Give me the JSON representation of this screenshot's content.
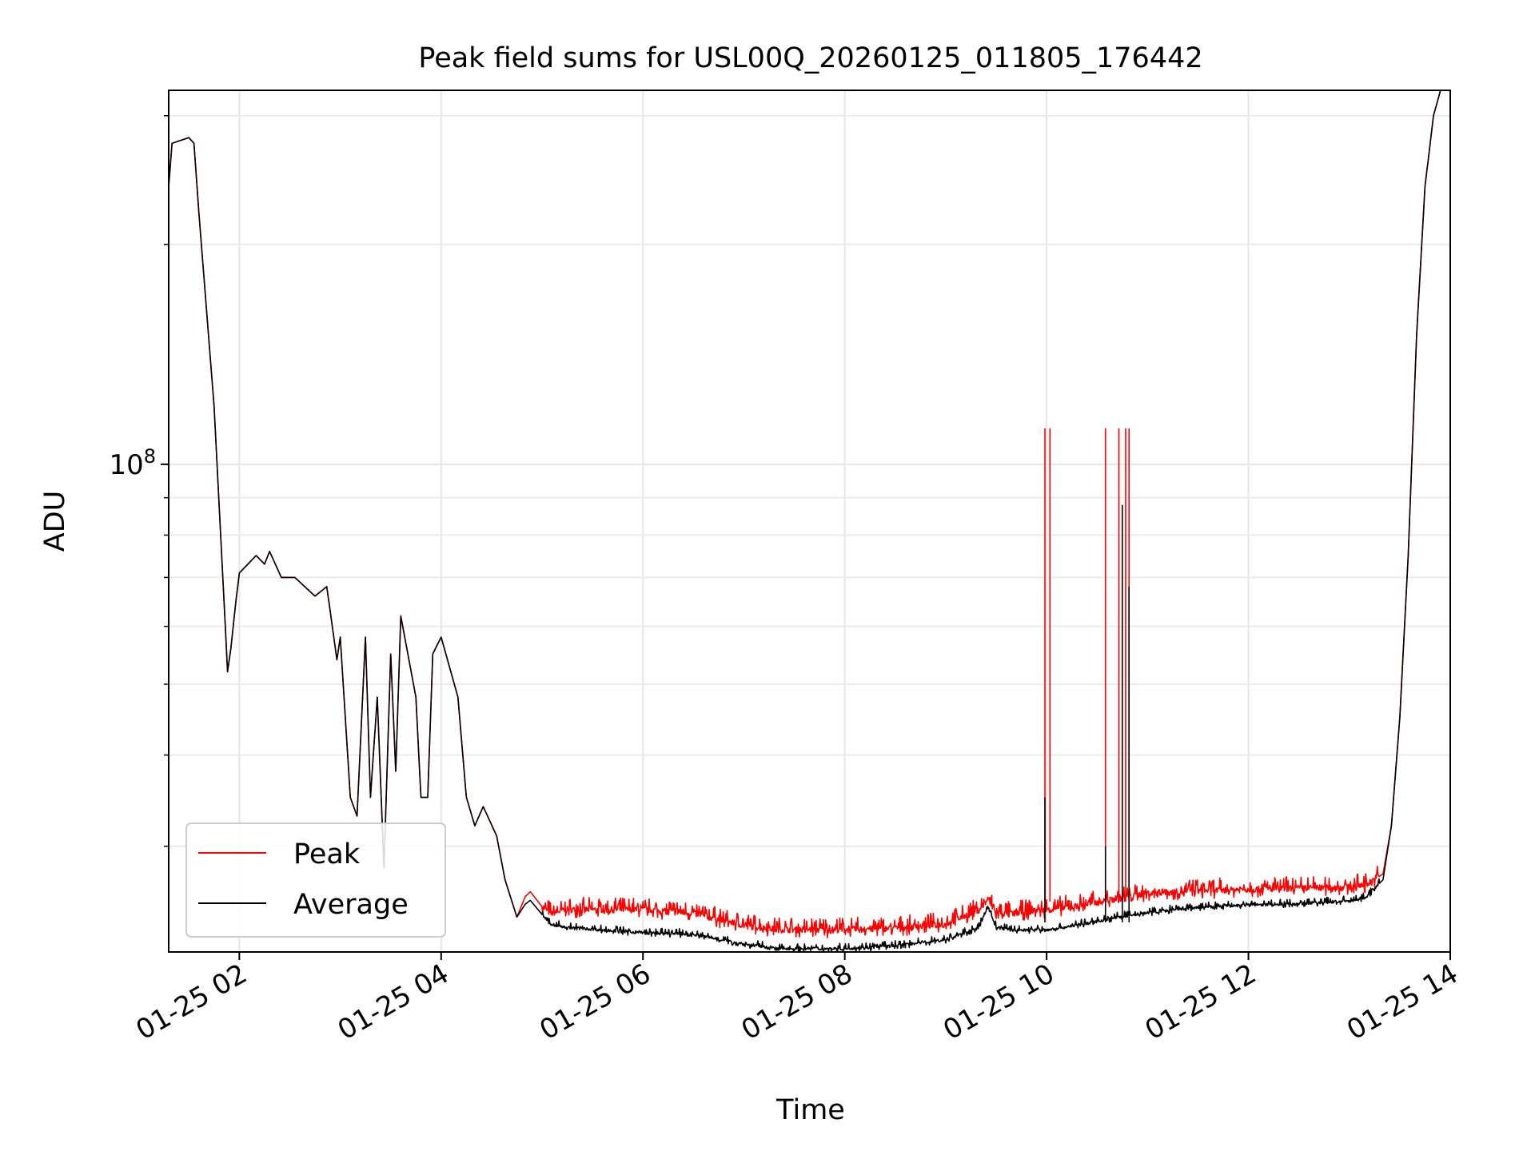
{
  "chart_data": {
    "type": "line",
    "title": "Peak field sums for USL00Q_20260125_011805_176442",
    "xlabel": "Time",
    "ylabel": "ADU",
    "yscale": "log",
    "grid": true,
    "legend_position": "lower-left",
    "x_is_time": true,
    "xlim": [
      "2026-01-25 01:18",
      "2026-01-25 14:00"
    ],
    "ylim": [
      21500000,
      325000000
    ],
    "x_ticks": [
      {
        "value": "2026-01-25 02:00",
        "label": "01-25 02"
      },
      {
        "value": "2026-01-25 04:00",
        "label": "01-25 04"
      },
      {
        "value": "2026-01-25 06:00",
        "label": "01-25 06"
      },
      {
        "value": "2026-01-25 08:00",
        "label": "01-25 08"
      },
      {
        "value": "2026-01-25 10:00",
        "label": "01-25 10"
      },
      {
        "value": "2026-01-25 12:00",
        "label": "01-25 12"
      },
      {
        "value": "2026-01-25 14:00",
        "label": "01-25 14"
      }
    ],
    "y_major_ticks": [
      {
        "value": 100000000,
        "base": "10",
        "exponent": "8"
      }
    ],
    "y_minor_ticks": [
      30000000,
      40000000,
      50000000,
      60000000,
      70000000,
      80000000,
      90000000,
      200000000,
      300000000
    ],
    "series": [
      {
        "name": "Peak",
        "color": "#ff0000",
        "x": [
          "2026-01-25 01:18",
          "2026-01-25 01:20",
          "2026-01-25 01:30",
          "2026-01-25 01:33",
          "2026-01-25 01:36",
          "2026-01-25 01:45",
          "2026-01-25 01:52",
          "2026-01-25 01:53",
          "2026-01-25 01:55",
          "2026-01-25 01:58",
          "2026-01-25 02:00",
          "2026-01-25 02:10",
          "2026-01-25 02:15",
          "2026-01-25 02:18",
          "2026-01-25 02:25",
          "2026-01-25 02:33",
          "2026-01-25 02:45",
          "2026-01-25 02:52",
          "2026-01-25 02:58",
          "2026-01-25 03:00",
          "2026-01-25 03:06",
          "2026-01-25 03:10",
          "2026-01-25 03:15",
          "2026-01-25 03:18",
          "2026-01-25 03:22",
          "2026-01-25 03:26",
          "2026-01-25 03:30",
          "2026-01-25 03:33",
          "2026-01-25 03:36",
          "2026-01-25 03:45",
          "2026-01-25 03:48",
          "2026-01-25 03:52",
          "2026-01-25 03:55",
          "2026-01-25 04:00",
          "2026-01-25 04:10",
          "2026-01-25 04:15",
          "2026-01-25 04:20",
          "2026-01-25 04:25",
          "2026-01-25 04:33",
          "2026-01-25 04:38",
          "2026-01-25 04:45",
          "2026-01-25 04:50",
          "2026-01-25 04:53",
          "2026-01-25 05:00",
          "2026-01-25 05:05",
          "2026-01-25 05:15",
          "2026-01-25 06:00",
          "2026-01-25 06:30",
          "2026-01-25 07:00",
          "2026-01-25 07:20",
          "2026-01-25 08:00",
          "2026-01-25 08:30",
          "2026-01-25 09:00",
          "2026-01-25 09:20",
          "2026-01-25 09:25",
          "2026-01-25 09:30",
          "2026-01-25 09:40",
          "2026-01-25 10:00",
          "2026-01-25 10:20",
          "2026-01-25 10:40",
          "2026-01-25 11:00",
          "2026-01-25 11:30",
          "2026-01-25 12:00",
          "2026-01-25 12:30",
          "2026-01-25 13:00",
          "2026-01-25 13:10",
          "2026-01-25 13:20",
          "2026-01-25 13:25",
          "2026-01-25 13:30",
          "2026-01-25 13:35",
          "2026-01-25 13:40",
          "2026-01-25 13:45",
          "2026-01-25 13:50",
          "2026-01-25 13:55"
        ],
        "values": [
          240000000,
          275000000,
          280000000,
          275000000,
          220000000,
          120000000,
          58000000,
          52000000,
          56000000,
          65000000,
          71000000,
          75000000,
          73000000,
          76000000,
          70000000,
          70000000,
          66000000,
          68000000,
          54000000,
          58000000,
          35000000,
          33000000,
          58000000,
          35000000,
          48000000,
          28000000,
          55000000,
          38000000,
          62000000,
          48000000,
          35000000,
          35000000,
          55000000,
          58000000,
          48000000,
          35000000,
          32000000,
          34000000,
          31000000,
          27000000,
          24000000,
          25600000,
          26000000,
          24800000,
          24200000,
          24500000,
          24500000,
          24200000,
          23300000,
          23000000,
          23000000,
          23100000,
          23400000,
          24500000,
          25300000,
          24200000,
          24200000,
          24500000,
          24800000,
          25300000,
          25800000,
          26000000,
          26100000,
          26200000,
          26300000,
          26500000,
          27500000,
          32000000,
          45000000,
          75000000,
          150000000,
          240000000,
          300000000,
          330000000
        ],
        "spikes": [
          {
            "x": "2026-01-25 09:59",
            "value": 112000000
          },
          {
            "x": "2026-01-25 10:02",
            "value": 112000000
          },
          {
            "x": "2026-01-25 10:35",
            "value": 112000000
          },
          {
            "x": "2026-01-25 10:43",
            "value": 112000000
          },
          {
            "x": "2026-01-25 10:47",
            "value": 112000000
          },
          {
            "x": "2026-01-25 10:49",
            "value": 112000000
          }
        ]
      },
      {
        "name": "Average",
        "color": "#000000",
        "x": [
          "2026-01-25 01:18",
          "2026-01-25 01:20",
          "2026-01-25 01:30",
          "2026-01-25 01:33",
          "2026-01-25 01:36",
          "2026-01-25 01:45",
          "2026-01-25 01:52",
          "2026-01-25 01:53",
          "2026-01-25 01:55",
          "2026-01-25 01:58",
          "2026-01-25 02:00",
          "2026-01-25 02:10",
          "2026-01-25 02:15",
          "2026-01-25 02:18",
          "2026-01-25 02:25",
          "2026-01-25 02:33",
          "2026-01-25 02:45",
          "2026-01-25 02:52",
          "2026-01-25 02:58",
          "2026-01-25 03:00",
          "2026-01-25 03:06",
          "2026-01-25 03:10",
          "2026-01-25 03:15",
          "2026-01-25 03:18",
          "2026-01-25 03:22",
          "2026-01-25 03:26",
          "2026-01-25 03:30",
          "2026-01-25 03:33",
          "2026-01-25 03:36",
          "2026-01-25 03:45",
          "2026-01-25 03:48",
          "2026-01-25 03:52",
          "2026-01-25 03:55",
          "2026-01-25 04:00",
          "2026-01-25 04:10",
          "2026-01-25 04:15",
          "2026-01-25 04:20",
          "2026-01-25 04:25",
          "2026-01-25 04:33",
          "2026-01-25 04:38",
          "2026-01-25 04:45",
          "2026-01-25 04:50",
          "2026-01-25 04:53",
          "2026-01-25 05:00",
          "2026-01-25 05:05",
          "2026-01-25 05:15",
          "2026-01-25 06:00",
          "2026-01-25 06:30",
          "2026-01-25 07:00",
          "2026-01-25 07:20",
          "2026-01-25 08:00",
          "2026-01-25 08:30",
          "2026-01-25 09:00",
          "2026-01-25 09:20",
          "2026-01-25 09:25",
          "2026-01-25 09:30",
          "2026-01-25 09:40",
          "2026-01-25 10:00",
          "2026-01-25 10:20",
          "2026-01-25 10:40",
          "2026-01-25 11:00",
          "2026-01-25 11:30",
          "2026-01-25 12:00",
          "2026-01-25 12:30",
          "2026-01-25 13:00",
          "2026-01-25 13:10",
          "2026-01-25 13:20",
          "2026-01-25 13:25",
          "2026-01-25 13:30",
          "2026-01-25 13:35",
          "2026-01-25 13:40",
          "2026-01-25 13:45",
          "2026-01-25 13:50",
          "2026-01-25 13:55"
        ],
        "values": [
          240000000,
          275000000,
          280000000,
          275000000,
          220000000,
          120000000,
          58000000,
          52000000,
          56000000,
          65000000,
          71000000,
          75000000,
          73000000,
          76000000,
          70000000,
          70000000,
          66000000,
          68000000,
          54000000,
          58000000,
          35000000,
          33000000,
          58000000,
          35000000,
          48000000,
          28000000,
          55000000,
          38000000,
          62000000,
          48000000,
          35000000,
          35000000,
          55000000,
          58000000,
          48000000,
          35000000,
          32000000,
          34000000,
          31000000,
          27000000,
          24000000,
          25000000,
          25300000,
          24200000,
          23400000,
          23200000,
          22800000,
          22700000,
          22000000,
          21700000,
          21700000,
          21900000,
          22300000,
          23200000,
          24800000,
          23200000,
          23000000,
          23000000,
          23400000,
          23900000,
          24300000,
          24700000,
          24900000,
          25000000,
          25200000,
          25500000,
          27000000,
          32000000,
          45000000,
          75000000,
          150000000,
          240000000,
          300000000,
          330000000
        ],
        "spikes": [
          {
            "x": "2026-01-25 09:59",
            "value": 35000000
          },
          {
            "x": "2026-01-25 10:35",
            "value": 30000000
          },
          {
            "x": "2026-01-25 10:45",
            "value": 88000000
          },
          {
            "x": "2026-01-25 10:49",
            "value": 68000000
          }
        ]
      }
    ]
  }
}
